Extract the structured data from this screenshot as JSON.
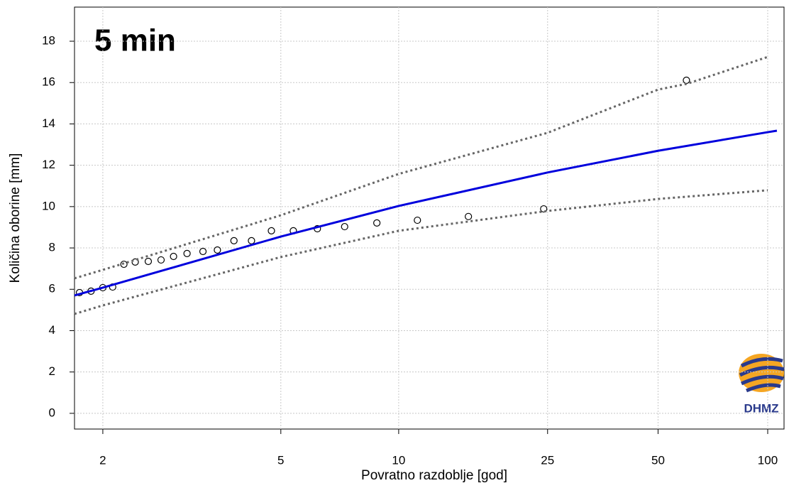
{
  "chart_data": {
    "type": "line",
    "annotation": "5 min",
    "x_label": "Povratno razdoblje [god]",
    "y_label": "Količina oborine [mm]",
    "logo_text": "DHMZ",
    "xscale": "gumbel",
    "xlim": [
      1.773,
      110.9
    ],
    "ylim": [
      -0.76,
      19.65
    ],
    "xticks": [
      2,
      5,
      10,
      25,
      50,
      100
    ],
    "yticks": [
      0,
      2,
      4,
      6,
      8,
      10,
      12,
      14,
      16,
      18
    ],
    "grid": true,
    "series": [
      {
        "style": "points",
        "color": "#000000",
        "x": [
          1.81,
          1.9,
          2.0,
          2.09,
          2.2,
          2.32,
          2.47,
          2.63,
          2.8,
          3.0,
          3.26,
          3.52,
          3.85,
          4.24,
          4.74,
          5.37,
          6.17,
          7.24,
          8.77,
          11.2,
          15.3,
          24.4,
          59.8
        ],
        "values": [
          5.84,
          5.91,
          6.08,
          6.11,
          7.21,
          7.32,
          7.35,
          7.42,
          7.59,
          7.73,
          7.83,
          7.9,
          8.35,
          8.35,
          8.83,
          8.83,
          8.93,
          9.03,
          9.21,
          9.34,
          9.52,
          9.89,
          16.11
        ]
      },
      {
        "style": "solid",
        "color": "#0000dd",
        "x": [
          1.773,
          2,
          5,
          10,
          25,
          50,
          100,
          106
        ],
        "values": [
          5.7,
          6.08,
          8.55,
          10.03,
          11.65,
          12.7,
          13.6,
          13.67
        ]
      },
      {
        "style": "dotted",
        "color": "#666666",
        "x": [
          1.773,
          2,
          5,
          10,
          25,
          50,
          60,
          100
        ],
        "values": [
          6.53,
          6.94,
          9.58,
          11.58,
          13.57,
          15.66,
          15.94,
          17.24
        ]
      },
      {
        "style": "dotted",
        "color": "#666666",
        "x": [
          1.773,
          2,
          5,
          10,
          25,
          50,
          100
        ],
        "values": [
          4.81,
          5.22,
          7.56,
          8.83,
          9.79,
          10.37,
          10.79
        ]
      }
    ]
  }
}
